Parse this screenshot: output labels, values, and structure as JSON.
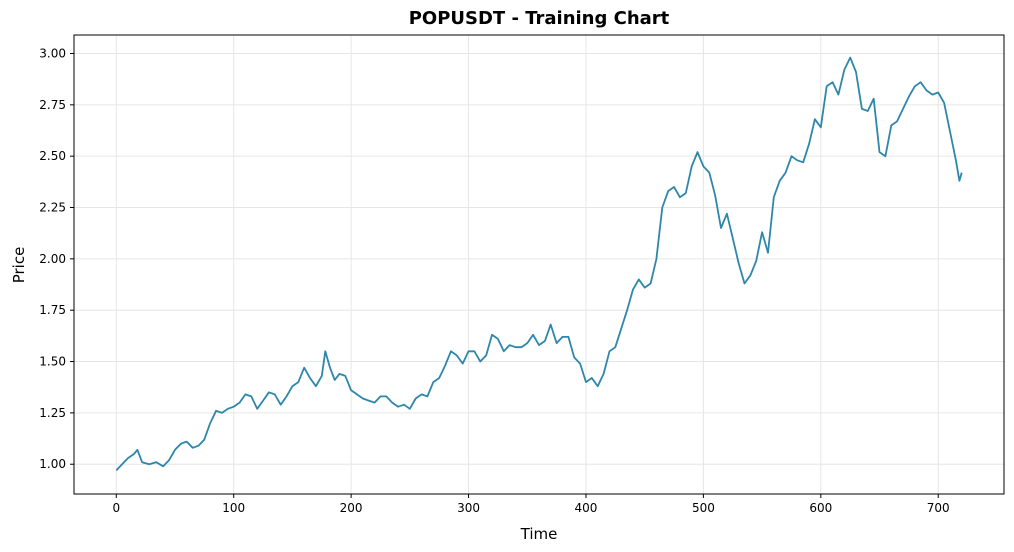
{
  "chart_data": {
    "type": "line",
    "title": "POPUSDT - Training Chart",
    "xlabel": "Time",
    "ylabel": "Price",
    "xlim": [
      -36,
      756
    ],
    "ylim": [
      0.855,
      3.09
    ],
    "xticks": [
      0,
      100,
      200,
      300,
      400,
      500,
      600,
      700
    ],
    "yticks": [
      1.0,
      1.25,
      1.5,
      1.75,
      2.0,
      2.25,
      2.5,
      2.75,
      3.0
    ],
    "xtick_labels": [
      "0",
      "100",
      "200",
      "300",
      "400",
      "500",
      "600",
      "700"
    ],
    "ytick_labels": [
      "1.00",
      "1.25",
      "1.50",
      "1.75",
      "2.00",
      "2.25",
      "2.50",
      "2.75",
      "3.00"
    ],
    "grid": true,
    "line_color": "#2e86ab",
    "series": [
      {
        "x": [
          0,
          5,
          10,
          15,
          18,
          22,
          28,
          34,
          40,
          45,
          50,
          55,
          60,
          65,
          70,
          75,
          80,
          85,
          90,
          95,
          100,
          105,
          110,
          115,
          120,
          125,
          130,
          135,
          140,
          145,
          150,
          155,
          160,
          165,
          170,
          175,
          178,
          182,
          186,
          190,
          195,
          200,
          205,
          210,
          215,
          220,
          225,
          230,
          235,
          240,
          245,
          250,
          255,
          260,
          265,
          270,
          275,
          280,
          285,
          290,
          295,
          300,
          305,
          310,
          315,
          320,
          325,
          330,
          335,
          340,
          345,
          350,
          355,
          360,
          365,
          370,
          375,
          380,
          385,
          390,
          395,
          400,
          405,
          410,
          415,
          420,
          425,
          430,
          435,
          440,
          445,
          450,
          455,
          460,
          465,
          470,
          475,
          480,
          485,
          490,
          495,
          500,
          505,
          510,
          515,
          520,
          525,
          530,
          535,
          540,
          545,
          550,
          555,
          560,
          565,
          570,
          575,
          580,
          585,
          590,
          595,
          600,
          605,
          610,
          615,
          620,
          625,
          630,
          635,
          640,
          645,
          650,
          655,
          660,
          665,
          670,
          675,
          680,
          685,
          690,
          695,
          700,
          705,
          710,
          715,
          718,
          720
        ],
        "values": [
          0.97,
          1.0,
          1.03,
          1.05,
          1.07,
          1.01,
          1.0,
          1.01,
          0.99,
          1.02,
          1.07,
          1.1,
          1.11,
          1.08,
          1.09,
          1.12,
          1.2,
          1.26,
          1.25,
          1.27,
          1.28,
          1.3,
          1.34,
          1.33,
          1.27,
          1.31,
          1.35,
          1.34,
          1.29,
          1.33,
          1.38,
          1.4,
          1.47,
          1.42,
          1.38,
          1.43,
          1.55,
          1.47,
          1.41,
          1.44,
          1.43,
          1.36,
          1.34,
          1.32,
          1.31,
          1.3,
          1.33,
          1.33,
          1.3,
          1.28,
          1.29,
          1.27,
          1.32,
          1.34,
          1.33,
          1.4,
          1.42,
          1.48,
          1.55,
          1.53,
          1.49,
          1.55,
          1.55,
          1.5,
          1.53,
          1.63,
          1.61,
          1.55,
          1.58,
          1.57,
          1.57,
          1.59,
          1.63,
          1.58,
          1.6,
          1.68,
          1.59,
          1.62,
          1.62,
          1.52,
          1.49,
          1.4,
          1.42,
          1.38,
          1.44,
          1.55,
          1.57,
          1.66,
          1.75,
          1.85,
          1.9,
          1.86,
          1.88,
          2.0,
          2.25,
          2.33,
          2.35,
          2.3,
          2.32,
          2.45,
          2.52,
          2.45,
          2.42,
          2.31,
          2.15,
          2.22,
          2.1,
          1.98,
          1.88,
          1.92,
          1.99,
          2.13,
          2.03,
          2.3,
          2.38,
          2.42,
          2.5,
          2.48,
          2.47,
          2.56,
          2.68,
          2.64,
          2.84,
          2.86,
          2.8,
          2.92,
          2.98,
          2.91,
          2.73,
          2.72,
          2.78,
          2.52,
          2.5,
          2.65,
          2.67,
          2.73,
          2.79,
          2.84,
          2.86,
          2.82,
          2.8,
          2.81,
          2.76,
          2.62,
          2.48,
          2.38,
          2.42
        ]
      }
    ]
  }
}
